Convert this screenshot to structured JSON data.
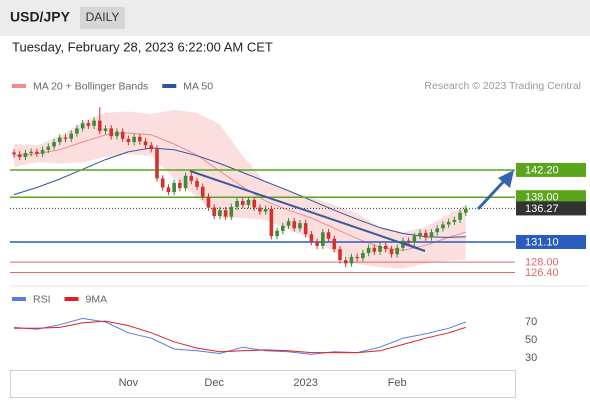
{
  "header": {
    "symbol": "USD/JPY",
    "period": "DAILY",
    "date": "Tuesday, February 28, 2023 6:22:00 AM CET"
  },
  "source": "Research © 2023 Trading Central",
  "chart_data": [
    {
      "type": "candlestick",
      "categories": [
        null,
        null,
        null,
        null,
        null,
        null,
        null,
        null,
        null,
        null,
        null,
        null,
        null,
        null,
        null,
        null,
        null,
        null,
        null,
        null,
        "Nov",
        null,
        null,
        null,
        null,
        null,
        null,
        null,
        null,
        null,
        null,
        null,
        null,
        null,
        null,
        "Dec",
        null,
        null,
        null,
        null,
        null,
        null,
        null,
        null,
        null,
        null,
        null,
        null,
        null,
        null,
        null,
        "2023",
        null,
        null,
        null,
        null,
        null,
        null,
        null,
        null,
        null,
        null,
        null,
        null,
        null,
        null,
        null,
        "Feb",
        null,
        null,
        null,
        null,
        null,
        null,
        null,
        null,
        null,
        null,
        null,
        null
      ],
      "open": [
        144.9,
        144.6,
        144.2,
        144.8,
        145.0,
        144.7,
        145.3,
        145.8,
        146.5,
        147.2,
        147.0,
        147.8,
        148.6,
        149.4,
        149.0,
        149.8,
        148.2,
        148.6,
        147.4,
        148.1,
        147.0,
        146.5,
        147.3,
        146.6,
        146.0,
        145.4,
        140.9,
        139.5,
        138.8,
        140.2,
        139.4,
        141.3,
        140.5,
        139.6,
        138.1,
        136.4,
        135.1,
        136.0,
        135.0,
        136.5,
        137.4,
        136.8,
        137.6,
        136.4,
        135.8,
        136.2,
        132.0,
        132.8,
        133.6,
        134.3,
        133.2,
        134.0,
        132.3,
        131.1,
        130.5,
        132.6,
        131.6,
        130.0,
        128.3,
        127.8,
        128.8,
        128.6,
        129.4,
        130.2,
        129.6,
        130.5,
        130.0,
        129.2,
        130.2,
        131.3,
        131.0,
        132.0,
        132.5,
        131.8,
        132.6,
        133.2,
        133.8,
        134.2,
        134.5,
        135.6
      ],
      "high": [
        145.4,
        145.1,
        145.3,
        145.5,
        145.5,
        145.8,
        146.3,
        147.0,
        147.7,
        147.7,
        148.3,
        149.1,
        149.9,
        149.9,
        150.3,
        151.9,
        149.1,
        149.1,
        148.6,
        148.6,
        147.5,
        147.8,
        147.8,
        147.1,
        146.5,
        146.0,
        141.4,
        140.0,
        140.7,
        140.7,
        141.8,
        141.8,
        141.0,
        140.1,
        138.6,
        136.9,
        136.5,
        136.5,
        137.0,
        137.9,
        137.9,
        138.1,
        138.1,
        136.9,
        136.7,
        136.7,
        133.3,
        134.1,
        134.8,
        134.8,
        134.5,
        134.5,
        132.8,
        131.6,
        133.1,
        133.1,
        132.1,
        130.5,
        128.8,
        129.3,
        129.3,
        129.9,
        130.7,
        130.7,
        131.0,
        131.0,
        130.5,
        130.7,
        131.8,
        131.8,
        132.5,
        133.0,
        133.0,
        133.1,
        133.7,
        134.3,
        134.7,
        135.0,
        136.1,
        136.7
      ],
      "low": [
        144.1,
        143.7,
        143.7,
        144.3,
        144.2,
        144.2,
        144.8,
        145.3,
        146.0,
        146.5,
        146.5,
        147.3,
        148.1,
        148.5,
        148.5,
        147.7,
        147.7,
        146.9,
        146.9,
        146.5,
        146.0,
        146.0,
        146.1,
        145.5,
        144.9,
        140.4,
        139.0,
        138.3,
        138.3,
        138.9,
        138.9,
        140.0,
        139.1,
        137.6,
        135.9,
        134.6,
        134.6,
        134.5,
        134.5,
        136.0,
        136.3,
        136.3,
        135.9,
        135.3,
        135.3,
        131.5,
        131.5,
        132.3,
        133.1,
        132.7,
        132.7,
        131.8,
        130.6,
        130.0,
        130.0,
        131.1,
        129.5,
        127.8,
        127.2,
        127.3,
        128.1,
        128.1,
        128.9,
        129.1,
        129.1,
        129.5,
        128.7,
        128.7,
        129.7,
        130.5,
        130.5,
        131.5,
        131.3,
        131.3,
        132.1,
        132.7,
        133.3,
        133.7,
        134.0,
        135.1
      ],
      "close": [
        144.6,
        144.2,
        144.8,
        145.0,
        144.7,
        145.3,
        145.8,
        146.5,
        147.2,
        147.0,
        147.8,
        148.6,
        149.4,
        149.0,
        149.8,
        148.2,
        148.6,
        147.4,
        148.1,
        147.0,
        146.5,
        147.3,
        146.6,
        146.0,
        145.4,
        140.9,
        139.5,
        138.8,
        140.2,
        139.4,
        141.3,
        140.5,
        139.6,
        138.1,
        136.4,
        135.1,
        136.0,
        135.0,
        136.5,
        137.4,
        136.8,
        137.6,
        136.4,
        135.8,
        136.2,
        132.0,
        132.8,
        133.6,
        134.3,
        133.2,
        134.0,
        132.3,
        131.1,
        130.5,
        132.6,
        131.6,
        130.0,
        128.3,
        127.8,
        128.8,
        128.6,
        129.4,
        130.2,
        129.6,
        130.5,
        130.0,
        129.2,
        130.2,
        131.3,
        131.0,
        132.0,
        132.5,
        131.8,
        132.6,
        133.2,
        133.8,
        134.2,
        134.5,
        135.6,
        136.2
      ],
      "up_color": "#3d8b37",
      "down_color": "#d2322d",
      "xlim": [
        -0.7,
        87.6
      ],
      "ylim": [
        124.47,
        153.44
      ],
      "x": [
        0,
        4,
        8,
        12,
        16,
        20,
        24,
        28,
        32,
        36,
        40,
        44,
        48,
        52,
        56,
        60,
        64,
        68,
        72,
        76,
        79
      ],
      "series": [
        {
          "name": "MA 20 + Bollinger Bands",
          "color": "#f08c8c",
          "values": [
            144.4,
            144.7,
            145.3,
            146.5,
            147.6,
            147.9,
            147.6,
            146.2,
            144.5,
            142.0,
            139.6,
            137.4,
            136.0,
            134.8,
            133.2,
            131.6,
            130.3,
            129.8,
            130.6,
            131.8,
            132.6
          ],
          "upper": [
            146.2,
            146.0,
            147.4,
            149.6,
            151.0,
            151.2,
            150.8,
            151.5,
            151.0,
            149.2,
            144.4,
            140.3,
            139.0,
            138.0,
            136.8,
            135.5,
            133.4,
            132.6,
            133.4,
            135.4,
            136.8
          ],
          "lower": [
            142.6,
            143.4,
            143.2,
            143.4,
            144.2,
            144.6,
            144.4,
            140.9,
            138.0,
            134.8,
            134.8,
            134.5,
            133.0,
            131.6,
            129.6,
            127.7,
            127.2,
            127.0,
            127.8,
            128.2,
            128.4
          ]
        },
        {
          "name": "MA 50",
          "color": "#2f5597",
          "values": [
            138.4,
            139.5,
            140.8,
            142.3,
            143.8,
            145.0,
            145.6,
            145.3,
            144.4,
            143.2,
            141.8,
            140.4,
            139.0,
            137.5,
            136.0,
            134.6,
            133.3,
            132.4,
            131.9,
            131.8,
            131.9
          ]
        }
      ],
      "levels": [
        {
          "value": 142.2,
          "label": "142.20",
          "color": "#5aa51c",
          "boxed": true,
          "style": "solid"
        },
        {
          "value": 138,
          "label": "138.00",
          "color": "#5aa51c",
          "boxed": true,
          "style": "solid"
        },
        {
          "value": 136.27,
          "label": "136.27",
          "color": "#333333",
          "boxed": true,
          "style": "dotted"
        },
        {
          "value": 131.1,
          "label": "131.10",
          "color": "#2a5cbf",
          "boxed": true,
          "style": "solid"
        },
        {
          "value": 128,
          "label": "128.00",
          "color": "#e06a6a",
          "boxed": false,
          "style": "solid"
        },
        {
          "value": 126.4,
          "label": "126.40",
          "color": "#e06a6a",
          "boxed": false,
          "style": "solid"
        }
      ]
    },
    {
      "type": "line",
      "x": [
        0,
        4,
        8,
        12,
        16,
        20,
        24,
        28,
        32,
        36,
        40,
        44,
        48,
        52,
        56,
        60,
        64,
        68,
        72,
        76,
        79
      ],
      "xlim": [
        -0.7,
        87.6
      ],
      "ylim": [
        16.7,
        107.8
      ],
      "yticks": [
        30,
        50,
        70
      ],
      "series": [
        {
          "name": "RSI",
          "color": "#5b7be0",
          "values": [
            64,
            62,
            67,
            74,
            70,
            58,
            52,
            40,
            38,
            35,
            42,
            38,
            37,
            34,
            37,
            36,
            42,
            52,
            57,
            63,
            70
          ]
        },
        {
          "name": "9MA",
          "color": "#e02020",
          "values": [
            63,
            63,
            64,
            69,
            71,
            66,
            58,
            48,
            41,
            37,
            38,
            39,
            38,
            36,
            36,
            36,
            38,
            45,
            52,
            58,
            64
          ]
        }
      ]
    }
  ]
}
